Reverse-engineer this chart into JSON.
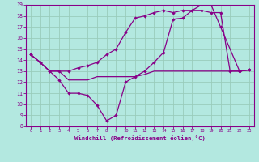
{
  "bg_color": "#b3e8e0",
  "grid_color": "#99ccbb",
  "line_color": "#880088",
  "xlabel": "Windchill (Refroidissement éolien,°C)",
  "xlim": [
    -0.5,
    23.5
  ],
  "ylim": [
    8,
    19
  ],
  "xticks": [
    0,
    1,
    2,
    3,
    4,
    5,
    6,
    7,
    8,
    9,
    10,
    11,
    12,
    13,
    14,
    15,
    16,
    17,
    18,
    19,
    20,
    21,
    22,
    23
  ],
  "yticks": [
    8,
    9,
    10,
    11,
    12,
    13,
    14,
    15,
    16,
    17,
    18,
    19
  ],
  "line1_x": [
    0,
    1,
    2,
    3,
    4,
    5,
    6,
    7,
    8,
    9,
    10,
    11,
    12,
    13,
    14,
    15,
    16,
    17,
    18,
    19,
    20,
    22,
    23
  ],
  "line1_y": [
    14.5,
    13.8,
    13.0,
    12.2,
    11.0,
    11.0,
    10.8,
    9.9,
    8.5,
    9.0,
    12.0,
    12.5,
    13.0,
    13.8,
    14.7,
    17.7,
    17.8,
    18.5,
    19.0,
    19.0,
    17.0,
    13.0,
    13.1
  ],
  "line2_x": [
    0,
    1,
    2,
    3,
    4,
    5,
    6,
    7,
    8,
    9,
    10,
    11,
    12,
    13,
    14,
    15,
    16,
    17,
    18,
    19,
    20,
    21,
    22,
    23
  ],
  "line2_y": [
    14.5,
    13.8,
    13.0,
    13.0,
    12.2,
    12.2,
    12.2,
    12.5,
    12.5,
    12.5,
    12.5,
    12.5,
    12.7,
    13.0,
    13.0,
    13.0,
    13.0,
    13.0,
    13.0,
    13.0,
    13.0,
    13.0,
    13.0,
    13.1
  ],
  "line3_x": [
    0,
    1,
    2,
    3,
    4,
    5,
    6,
    7,
    8,
    9,
    10,
    11,
    12,
    13,
    14,
    15,
    16,
    17,
    18,
    19,
    20,
    21,
    22,
    23
  ],
  "line3_y": [
    14.5,
    13.8,
    13.0,
    13.0,
    13.0,
    13.3,
    13.5,
    13.8,
    14.5,
    15.0,
    16.5,
    17.8,
    18.0,
    18.3,
    18.5,
    18.3,
    18.5,
    18.5,
    18.5,
    18.3,
    18.3,
    13.0,
    13.0,
    13.1
  ]
}
